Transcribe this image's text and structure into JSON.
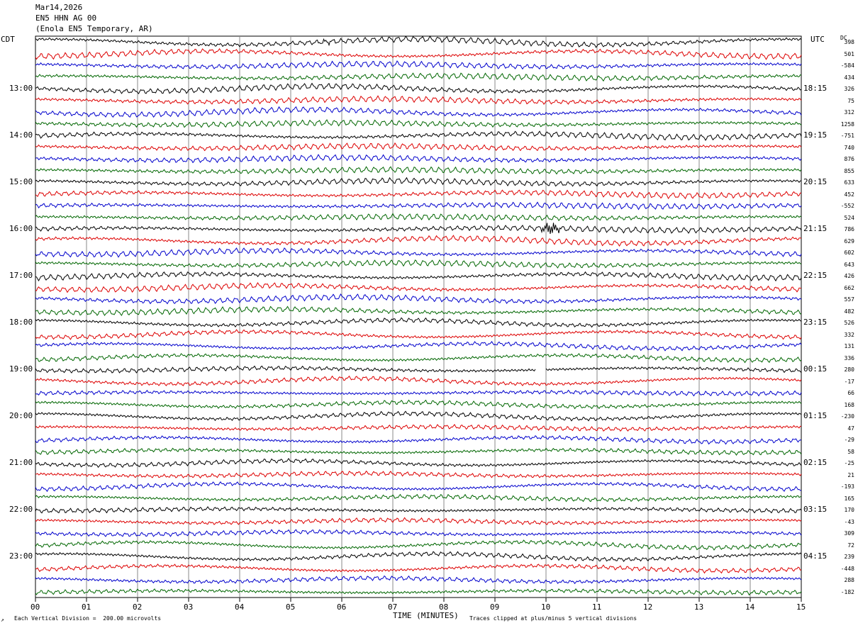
{
  "header": {
    "date": "Mar14,2026",
    "channel": "EN5 HHN AG 00",
    "station": "(Enola EN5 Temporary, AR)"
  },
  "left_tz": "CDT",
  "right_tz": "UTC",
  "dc_label": "DC",
  "left_hours": [
    "13:00",
    "14:00",
    "15:00",
    "16:00",
    "17:00",
    "18:00",
    "19:00",
    "20:00",
    "21:00",
    "22:00",
    "23:00"
  ],
  "right_hours": [
    "18:15",
    "19:15",
    "20:15",
    "21:15",
    "22:15",
    "23:15",
    "00:15",
    "01:15",
    "02:15",
    "03:15",
    "04:15"
  ],
  "dc_values": [
    "398",
    "501",
    "-584",
    "434",
    "326",
    "75",
    "312",
    "1258",
    "-751",
    "740",
    "876",
    "855",
    "633",
    "452",
    "-552",
    "524",
    "786",
    "629",
    "602",
    "643",
    "426",
    "662",
    "557",
    "482",
    "526",
    "332",
    "131",
    "336",
    "280",
    "-17",
    "66",
    "168",
    "-230",
    "47",
    "-29",
    "58",
    "-25",
    "21",
    "-193",
    "165",
    "170",
    "-43",
    "309",
    "72",
    "239",
    "-448",
    "288",
    "-182"
  ],
  "footer": {
    "scale_note": "Each Vertical Division =  200.00 microvolts",
    "xlabel": "TIME (MINUTES)",
    "clip_note": "Traces clipped at plus/minus 5 vertical divisions"
  },
  "chart_data": {
    "type": "line",
    "title": "Mar14,2026 EN5 HHN AG 00 (Enola EN5 Temporary, AR)",
    "xlabel": "TIME (MINUTES)",
    "x_ticks": [
      "00",
      "01",
      "02",
      "03",
      "04",
      "05",
      "06",
      "07",
      "08",
      "09",
      "10",
      "11",
      "12",
      "13",
      "14",
      "15"
    ],
    "xlim": [
      0,
      15
    ],
    "rows": 48,
    "row_minutes": 15,
    "trace_colors": [
      "#000000",
      "#dd0000",
      "#0000cc",
      "#006600"
    ],
    "events": [
      {
        "row": 16,
        "minute": 10.1,
        "amplitude": "large"
      },
      {
        "row": 0,
        "minute": 5.7,
        "amplitude": "medium"
      }
    ],
    "gaps": [
      {
        "row": 28,
        "from_minute": 9.8,
        "to_minute": 10.0
      }
    ]
  }
}
